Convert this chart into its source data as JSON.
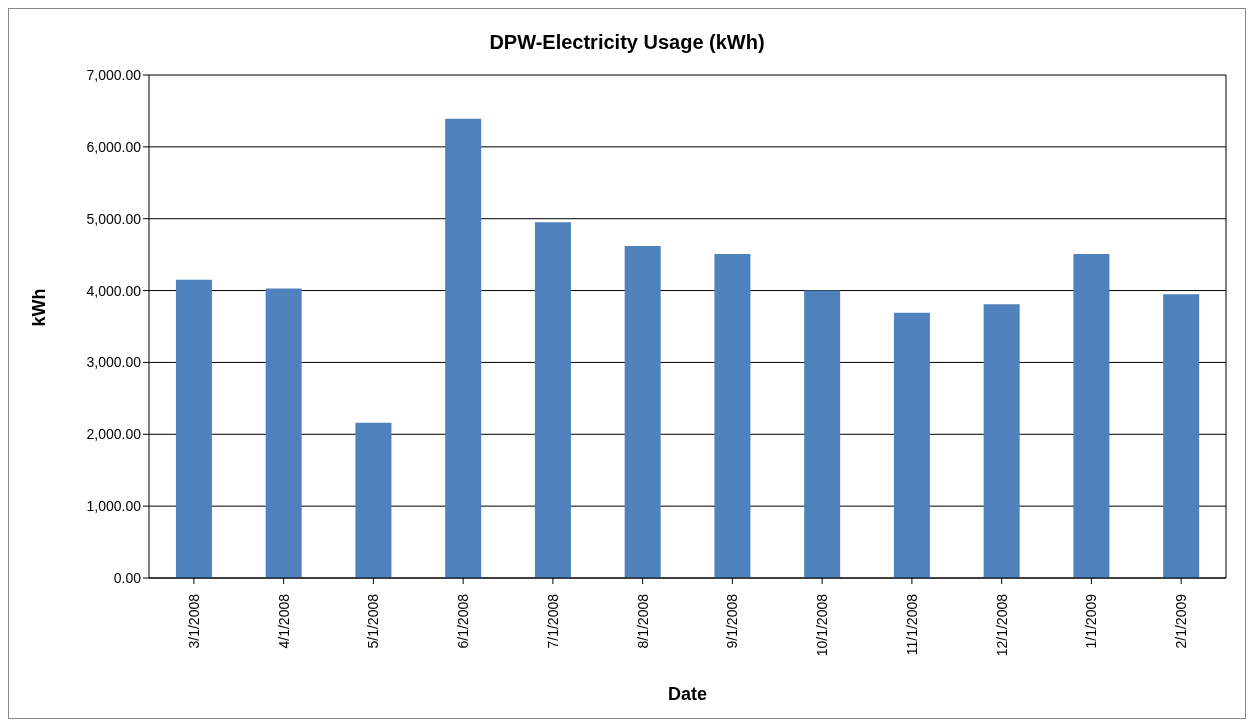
{
  "chart_data": {
    "type": "bar",
    "title": "DPW-Electricity Usage (kWh)",
    "xlabel": "Date",
    "ylabel": "kWh",
    "categories": [
      "3/1/2008",
      "4/1/2008",
      "5/1/2008",
      "6/1/2008",
      "7/1/2008",
      "8/1/2008",
      "9/1/2008",
      "10/1/2008",
      "11/1/2008",
      "12/1/2008",
      "1/1/2009",
      "2/1/2009"
    ],
    "values": [
      4150,
      4030,
      2160,
      6390,
      4950,
      4620,
      4510,
      4000,
      3690,
      3810,
      4510,
      3950
    ],
    "color": "#4f81bd",
    "ylim": [
      0,
      7000
    ],
    "yticks": [
      {
        "value": 0,
        "label": "0.00"
      },
      {
        "value": 1000,
        "label": "1,000.00"
      },
      {
        "value": 2000,
        "label": "2,000.00"
      },
      {
        "value": 3000,
        "label": "3,000.00"
      },
      {
        "value": 4000,
        "label": "4,000.00"
      },
      {
        "value": 5000,
        "label": "5,000.00"
      },
      {
        "value": 6000,
        "label": "6,000.00"
      },
      {
        "value": 7000,
        "label": "7,000.00"
      }
    ],
    "grid": "y",
    "legend": false
  }
}
